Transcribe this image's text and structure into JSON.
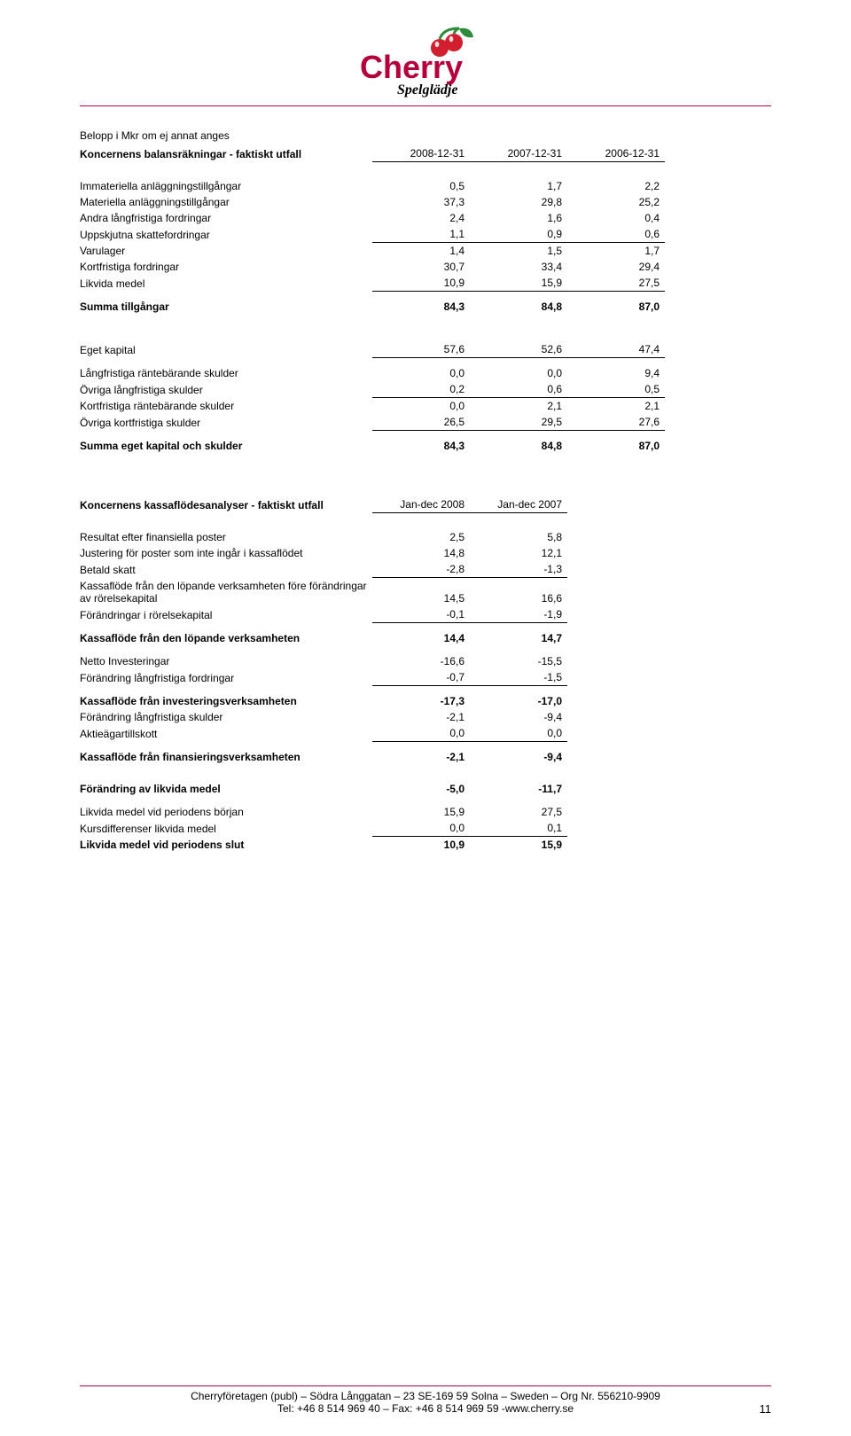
{
  "logo": {
    "brand": "Cherry",
    "tagline": "Spelglädje",
    "accent_color": "#b5003c",
    "cherry_red": "#d21f2f",
    "leaf_green": "#2e8b3a"
  },
  "caption": "Belopp i Mkr om ej annat anges",
  "balance": {
    "title": "Koncernens balansräkningar - faktiskt utfall",
    "col_headers": [
      "2008-12-31",
      "2007-12-31",
      "2006-12-31"
    ],
    "rows": [
      {
        "label": "Immateriella anläggningstillgångar",
        "vals": [
          "0,5",
          "1,7",
          "2,2"
        ]
      },
      {
        "label": "Materiella anläggningstillgångar",
        "vals": [
          "37,3",
          "29,8",
          "25,2"
        ]
      },
      {
        "label": "Andra långfristiga fordringar",
        "vals": [
          "2,4",
          "1,6",
          "0,4"
        ]
      },
      {
        "label": "Uppskjutna skattefordringar",
        "vals": [
          "1,1",
          "0,9",
          "0,6"
        ],
        "sub_border": true
      },
      {
        "label": "Varulager",
        "vals": [
          "1,4",
          "1,5",
          "1,7"
        ]
      },
      {
        "label": "Kortfristiga fordringar",
        "vals": [
          "30,7",
          "33,4",
          "29,4"
        ]
      },
      {
        "label": "Likvida medel",
        "vals": [
          "10,9",
          "15,9",
          "27,5"
        ],
        "sub_border": true
      }
    ],
    "sum_assets": {
      "label": "Summa tillgångar",
      "vals": [
        "84,3",
        "84,8",
        "87,0"
      ]
    },
    "eget_kapital": {
      "label": "Eget kapital",
      "vals": [
        "57,6",
        "52,6",
        "47,4"
      ]
    },
    "rows2": [
      {
        "label": "Långfristiga räntebärande skulder",
        "vals": [
          "0,0",
          "0,0",
          "9,4"
        ]
      },
      {
        "label": "Övriga långfristiga skulder",
        "vals": [
          "0,2",
          "0,6",
          "0,5"
        ],
        "sub_border": true
      },
      {
        "label": "Kortfristiga räntebärande skulder",
        "vals": [
          "0,0",
          "2,1",
          "2,1"
        ]
      },
      {
        "label": "Övriga kortfristiga skulder",
        "vals": [
          "26,5",
          "29,5",
          "27,6"
        ],
        "sub_border": true
      }
    ],
    "sum_eq": {
      "label": "Summa eget kapital och skulder",
      "vals": [
        "84,3",
        "84,8",
        "87,0"
      ]
    }
  },
  "cashflow": {
    "title": "Koncernens kassaflödesanalyser - faktiskt utfall",
    "col_headers": [
      "Jan-dec 2008",
      "Jan-dec 2007"
    ],
    "block1": [
      {
        "label": "Resultat efter finansiella poster",
        "vals": [
          "2,5",
          "5,8"
        ]
      },
      {
        "label": "Justering för poster som inte ingår i kassaflödet",
        "vals": [
          "14,8",
          "12,1"
        ]
      },
      {
        "label": "Betald skatt",
        "vals": [
          "-2,8",
          "-1,3"
        ],
        "sub_border": true
      },
      {
        "label": "Kassaflöde från den löpande verksamheten före förändringar av rörelsekapital",
        "vals": [
          "14,5",
          "16,6"
        ]
      },
      {
        "label": "Förändringar i rörelsekapital",
        "vals": [
          "-0,1",
          "-1,9"
        ],
        "sub_border": true
      }
    ],
    "sum1": {
      "label": "Kassaflöde från den löpande verksamheten",
      "vals": [
        "14,4",
        "14,7"
      ]
    },
    "block2": [
      {
        "label": "Netto Investeringar",
        "vals": [
          "-16,6",
          "-15,5"
        ]
      },
      {
        "label": "Förändring långfristiga fordringar",
        "vals": [
          "-0,7",
          "-1,5"
        ],
        "sub_border": true
      }
    ],
    "sum2": {
      "label": "Kassaflöde från investeringsverksamheten",
      "vals": [
        "-17,3",
        "-17,0"
      ]
    },
    "block3": [
      {
        "label": "Förändring långfristiga skulder",
        "vals": [
          "-2,1",
          "-9,4"
        ]
      },
      {
        "label": "Aktieägartillskott",
        "vals": [
          "0,0",
          "0,0"
        ],
        "sub_border": true
      }
    ],
    "sum3": {
      "label": "Kassaflöde från finansieringsverksamheten",
      "vals": [
        "-2,1",
        "-9,4"
      ]
    },
    "change": {
      "label": "Förändring av likvida medel",
      "vals": [
        "-5,0",
        "-11,7"
      ]
    },
    "block4": [
      {
        "label": "Likvida medel vid periodens början",
        "vals": [
          "15,9",
          "27,5"
        ]
      },
      {
        "label": "Kursdifferenser likvida medel",
        "vals": [
          "0,0",
          "0,1"
        ],
        "sub_border": true
      }
    ],
    "sum4": {
      "label": "Likvida medel vid periodens slut",
      "vals": [
        "10,9",
        "15,9"
      ]
    }
  },
  "footer": {
    "line1": "Cherryföretagen (publ) – Södra Långgatan – 23 SE-169 59 Solna – Sweden – Org Nr. 556210-9909",
    "line2": "Tel: +46 8 514 969 40 – Fax: +46 8 514 969 59 -www.cherry.se",
    "page": "11"
  }
}
